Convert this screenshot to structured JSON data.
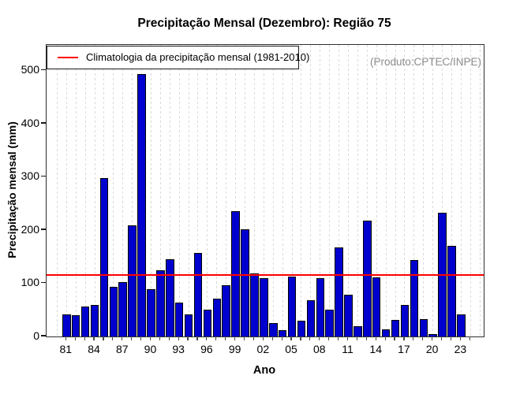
{
  "title": "Precipitação Mensal (Dezembro): Região 75",
  "watermark": "(Produto:CPTEC/INPE)",
  "colors": {
    "bar_fill": "#0000CE",
    "bar_border": "#000000",
    "climatology_line": "#FF0000",
    "watermark_text": "#8C8C8C",
    "gridline": "#DADADA"
  },
  "chart_data": {
    "type": "bar",
    "title": "Precipitação Mensal (Dezembro): Região 75",
    "xlabel": "Ano",
    "ylabel": "Precipitação mensal (mm)",
    "legend": "Climatologia da precipitação mensal (1981-2010)",
    "annotation": "(Produto:CPTEC/INPE)",
    "years": [
      1981,
      1982,
      1983,
      1984,
      1985,
      1986,
      1987,
      1988,
      1989,
      1990,
      1991,
      1992,
      1993,
      1994,
      1995,
      1996,
      1997,
      1998,
      1999,
      2000,
      2001,
      2002,
      2003,
      2004,
      2005,
      2006,
      2007,
      2008,
      2009,
      2010,
      2011,
      2012,
      2013,
      2014,
      2015,
      2016,
      2017,
      2018,
      2019,
      2020,
      2021,
      2022,
      2023
    ],
    "values": [
      41,
      40,
      56,
      60,
      297,
      93,
      102,
      209,
      493,
      89,
      124,
      145,
      64,
      41,
      157,
      50,
      71,
      97,
      235,
      201,
      118,
      109,
      25,
      12,
      112,
      29,
      68,
      110,
      50,
      168,
      78,
      19,
      218,
      111,
      14,
      31,
      60,
      143,
      33,
      5,
      233,
      170,
      41
    ],
    "climatology_line": 115,
    "y_ticks": [
      0,
      100,
      200,
      300,
      400,
      500
    ],
    "x_tick_labels": [
      "81",
      "84",
      "87",
      "90",
      "93",
      "96",
      "99",
      "02",
      "05",
      "08",
      "11",
      "14",
      "17",
      "20",
      "23"
    ],
    "ylim": [
      0,
      548
    ],
    "grid": "vertical-dashed",
    "legend_position": "top-left"
  }
}
